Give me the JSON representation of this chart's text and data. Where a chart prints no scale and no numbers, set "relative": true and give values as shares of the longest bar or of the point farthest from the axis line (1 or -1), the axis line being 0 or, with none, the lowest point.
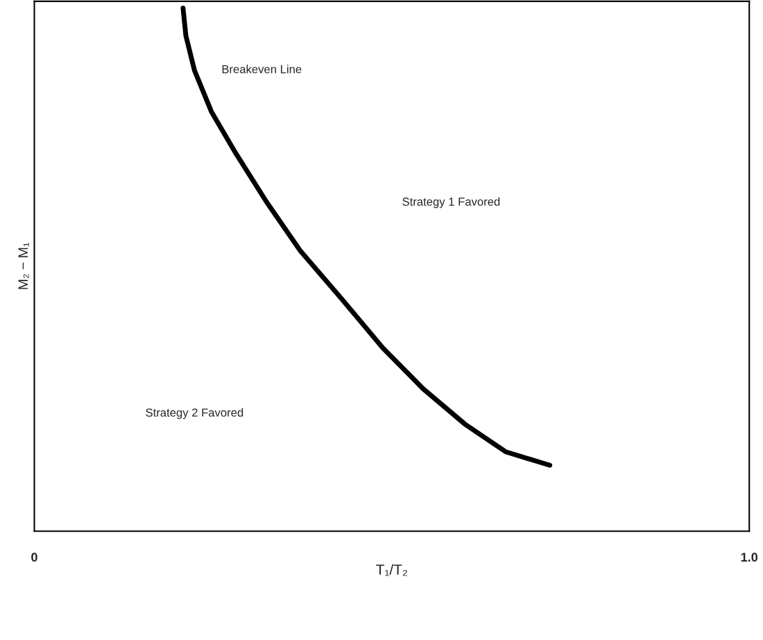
{
  "chart_data": {
    "type": "line",
    "relative": true,
    "xlabel": "T₁/T₂",
    "ylabel": "M₂ − M₁",
    "xlim": [
      0,
      1
    ],
    "xticks": [
      0,
      {
        "value": 1,
        "label": "1.0"
      }
    ],
    "x": [
      0.208,
      0.212,
      0.224,
      0.248,
      0.282,
      0.325,
      0.372,
      0.43,
      0.487,
      0.544,
      0.602,
      0.659,
      0.721
    ],
    "series": [
      {
        "color": "#000000",
        "values": [
          1.0,
          0.947,
          0.881,
          0.801,
          0.722,
          0.629,
          0.536,
          0.444,
          0.351,
          0.272,
          0.205,
          0.152,
          0.126
        ]
      }
    ],
    "annotations": [
      "Breakeven Line",
      "Strategy 1 Favored",
      "Strategy 2 Favored"
    ],
    "legend": false,
    "marker": "none",
    "line_style": "solid"
  }
}
